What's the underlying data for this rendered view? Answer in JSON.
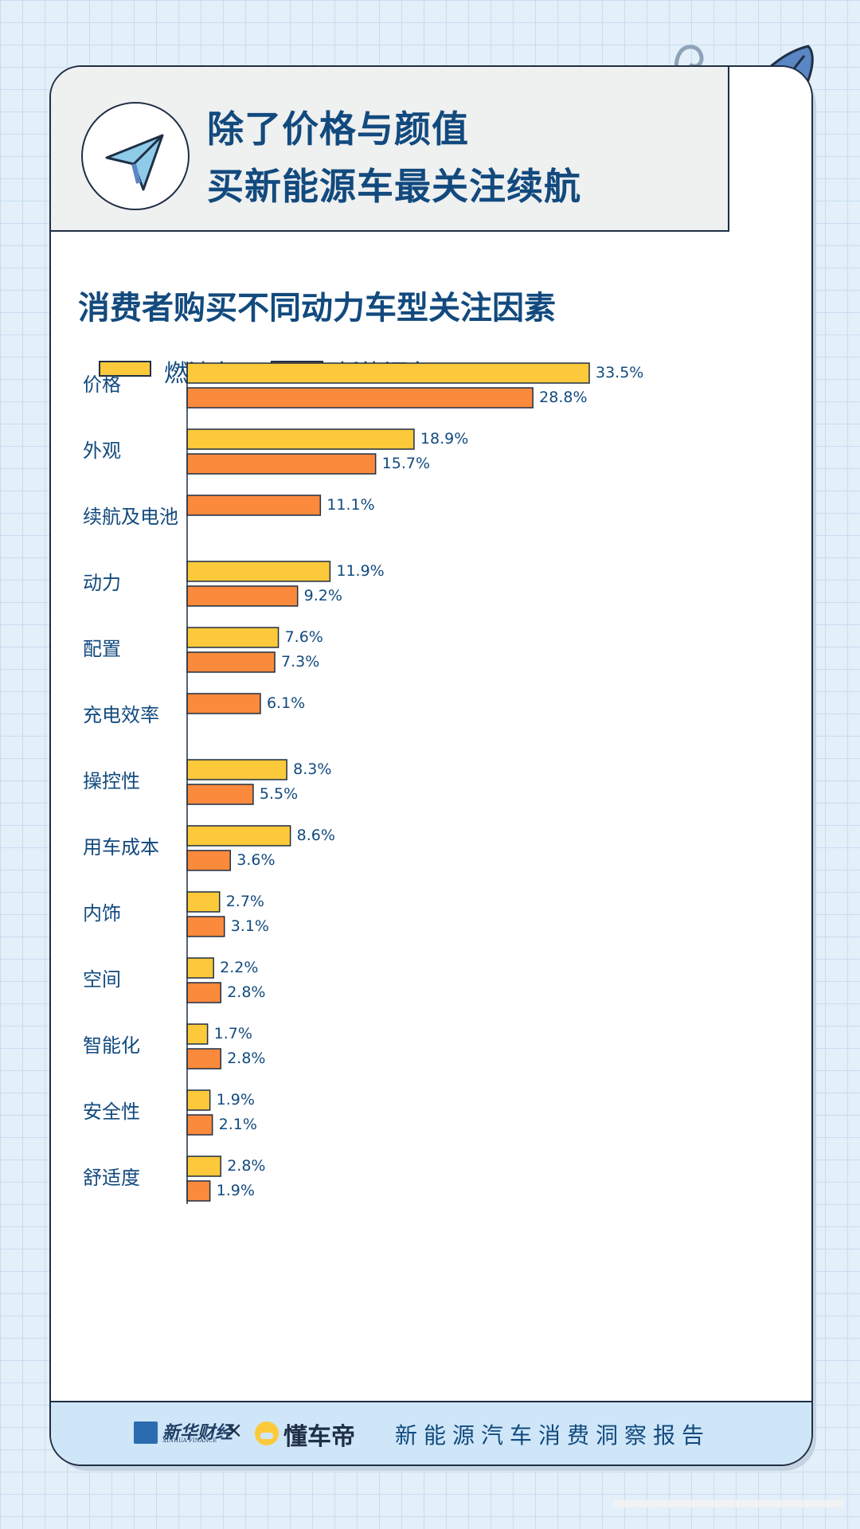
{
  "header": {
    "title_line1": "除了价格与颜值",
    "title_line2": "买新能源车最关注续航",
    "logo_icon": "paper-plane-icon"
  },
  "colors": {
    "fuel": "#fcc93a",
    "nev": "#fb8a3c",
    "title": "#124a7e",
    "outline": "#1f2f45"
  },
  "chart_data": {
    "type": "bar",
    "orientation": "horizontal",
    "title": "消费者购买不同动力车型关注因素",
    "legend_position": "top-left",
    "categories": [
      "价格",
      "外观",
      "续航及电池",
      "动力",
      "配置",
      "充电效率",
      "操控性",
      "用车成本",
      "内饰",
      "空间",
      "智能化",
      "安全性",
      "舒适度"
    ],
    "series": [
      {
        "name": "燃油车",
        "values": [
          33.5,
          18.9,
          null,
          11.9,
          7.6,
          null,
          8.3,
          8.6,
          2.7,
          2.2,
          1.7,
          1.9,
          2.8
        ],
        "labels": [
          "33.5%",
          "18.9%",
          "",
          "11.9%",
          "7.6%",
          "",
          "8.3%",
          "8.6%",
          "2.7%",
          "2.2%",
          "1.7%",
          "1.9%",
          "2.8%"
        ]
      },
      {
        "name": "新能源车",
        "values": [
          28.8,
          15.7,
          11.1,
          9.2,
          7.3,
          6.1,
          5.5,
          3.6,
          3.1,
          2.8,
          2.8,
          2.1,
          1.9
        ],
        "labels": [
          "28.8%",
          "15.7%",
          "11.1%",
          "9.2%",
          "7.3%",
          "6.1%",
          "5.5%",
          "3.6%",
          "3.1%",
          "2.8%",
          "2.8%",
          "2.1%",
          "1.9%"
        ]
      }
    ],
    "unit": "%",
    "xlim": [
      0,
      33.5
    ],
    "grid": false
  },
  "footer": {
    "brand1_name": "新华财经",
    "brand1_sub": "XINHUA FINANCE",
    "separator": "×",
    "brand2_name": "懂车帝",
    "report_title": "新能源汽车消费洞察报告"
  }
}
